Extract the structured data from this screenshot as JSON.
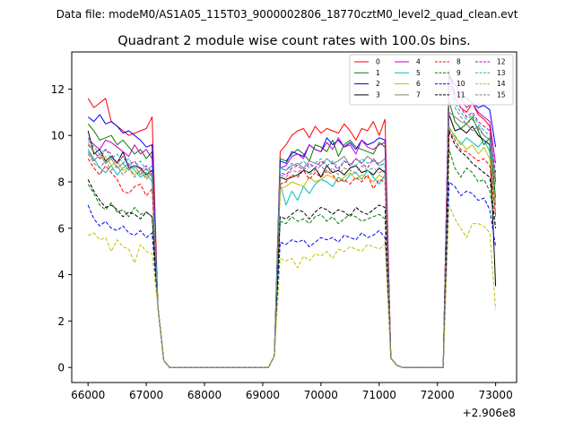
{
  "figure": {
    "suptitle": "Data file: modeM0/AS1A05_115T03_9000002806_18770cztM0_level2_quad_clean.evt",
    "title": "Quadrant 2 module wise count rates with 100.0s bins."
  },
  "chart_data": {
    "type": "line",
    "title": "Quadrant 2 module wise count rates with 100.0s bins.",
    "xlabel": "",
    "ylabel": "",
    "x_offset_label": "+2.906e8",
    "xlim": [
      65720,
      73360
    ],
    "ylim": [
      -0.65,
      13.6
    ],
    "xticks": [
      66000,
      67000,
      68000,
      69000,
      70000,
      71000,
      72000,
      73000
    ],
    "xtick_labels": [
      "66000",
      "67000",
      "68000",
      "69000",
      "70000",
      "71000",
      "72000",
      "73000"
    ],
    "yticks": [
      0,
      2,
      4,
      6,
      8,
      10,
      12
    ],
    "ytick_labels": [
      "0",
      "2",
      "4",
      "6",
      "8",
      "10",
      "12"
    ],
    "legend_location": "top-right",
    "legend_columns": 4,
    "x_segments_note": "x values are 100 s bins: 66000-67100 (12 pts), 67200 & 67300 drop, 67300-69100 zero, 69200-71100 (20 pts), 71200 & 71300 drop, 71300-72100 zero, 72200-73000 (9 pts)",
    "series": [
      {
        "name": "0",
        "color": "#ff0000",
        "dash": "solid",
        "seg1": [
          11.6,
          11.2,
          11.4,
          11.6,
          10.6,
          10.4,
          10.2,
          10.0,
          10.1,
          10.2,
          10.3,
          10.8
        ],
        "seg2": [
          8.7,
          9.3,
          9.6,
          10.0,
          10.2,
          10.3,
          9.9,
          10.4,
          10.1,
          10.3,
          10.2,
          10.1,
          10.5,
          10.2,
          9.8,
          10.3,
          10.2,
          10.6,
          10.0,
          10.7
        ],
        "seg3": [
          12.8,
          11.6,
          11.2,
          11.0,
          11.4,
          10.9,
          10.7,
          10.4,
          8.0
        ]
      },
      {
        "name": "1",
        "color": "#008000",
        "dash": "solid",
        "seg1": [
          10.5,
          10.2,
          9.8,
          9.9,
          10.0,
          9.6,
          9.8,
          9.5,
          9.2,
          9.4,
          9.0,
          9.3
        ],
        "seg2": [
          8.5,
          9.0,
          8.9,
          9.2,
          9.4,
          9.2,
          8.9,
          9.6,
          9.5,
          9.3,
          9.8,
          9.1,
          9.6,
          9.8,
          9.5,
          9.4,
          9.3,
          9.2,
          9.7,
          9.5
        ],
        "seg3": [
          11.5,
          10.6,
          10.3,
          10.5,
          10.8,
          10.2,
          9.6,
          9.9,
          7.3
        ]
      },
      {
        "name": "2",
        "color": "#0000ff",
        "dash": "solid",
        "seg1": [
          10.8,
          10.6,
          10.9,
          10.5,
          10.6,
          10.4,
          10.1,
          10.2,
          10.0,
          9.8,
          9.5,
          9.6
        ],
        "seg2": [
          8.6,
          8.9,
          8.8,
          9.3,
          9.2,
          9.1,
          9.6,
          9.4,
          9.3,
          9.9,
          9.6,
          9.8,
          9.5,
          9.7,
          9.4,
          9.8,
          9.6,
          9.7,
          9.9,
          9.8
        ],
        "seg3": [
          12.6,
          12.2,
          11.8,
          11.6,
          11.4,
          11.2,
          11.3,
          11.1,
          9.5
        ]
      },
      {
        "name": "3",
        "color": "#000000",
        "dash": "solid",
        "seg1": [
          10.2,
          9.2,
          9.4,
          8.9,
          9.1,
          8.8,
          9.3,
          8.6,
          8.7,
          8.6,
          8.3,
          8.5
        ],
        "seg2": [
          7.8,
          8.2,
          8.1,
          8.2,
          8.3,
          8.5,
          8.4,
          8.6,
          8.2,
          8.7,
          8.4,
          8.5,
          8.3,
          8.6,
          8.7,
          8.4,
          8.5,
          8.3,
          8.6,
          8.4
        ],
        "seg3": [
          10.9,
          10.2,
          10.3,
          10.1,
          10.4,
          10.0,
          9.8,
          9.6,
          3.5
        ]
      },
      {
        "name": "4",
        "color": "#bf00bf",
        "dash": "solid",
        "seg1": [
          9.9,
          9.6,
          9.4,
          9.8,
          9.7,
          9.5,
          9.3,
          9.1,
          9.6,
          9.2,
          9.4,
          9.0
        ],
        "seg2": [
          8.3,
          8.6,
          8.7,
          9.1,
          9.2,
          9.0,
          9.6,
          9.4,
          9.3,
          9.7,
          9.4,
          9.9,
          9.5,
          9.6,
          9.2,
          9.8,
          9.5,
          9.4,
          9.6,
          9.7
        ],
        "seg3": [
          12.7,
          11.8,
          11.6,
          11.2,
          11.4,
          11.0,
          10.8,
          10.6,
          8.8
        ]
      },
      {
        "name": "5",
        "color": "#00bfbf",
        "dash": "solid",
        "seg1": [
          9.4,
          9.0,
          8.6,
          8.4,
          8.7,
          8.3,
          8.6,
          8.8,
          8.5,
          8.2,
          8.4,
          8.0
        ],
        "seg2": [
          7.6,
          7.9,
          7.0,
          7.6,
          7.2,
          7.8,
          7.5,
          7.9,
          8.1,
          8.0,
          7.8,
          8.2,
          8.0,
          8.3,
          8.4,
          8.1,
          8.5,
          8.2,
          7.9,
          8.3
        ],
        "seg3": [
          10.3,
          10.0,
          9.6,
          9.9,
          9.7,
          9.5,
          9.8,
          9.3,
          7.0
        ]
      },
      {
        "name": "6",
        "color": "#bfbf00",
        "dash": "solid",
        "seg1": [
          9.7,
          9.3,
          9.0,
          9.1,
          8.7,
          8.9,
          8.5,
          8.6,
          8.3,
          8.5,
          8.2,
          8.4
        ],
        "seg2": [
          7.4,
          7.7,
          7.8,
          8.0,
          7.9,
          7.8,
          8.2,
          8.0,
          8.1,
          8.3,
          8.2,
          8.0,
          8.2,
          8.4,
          8.1,
          8.3,
          8.2,
          8.0,
          8.3,
          8.1
        ],
        "seg3": [
          10.4,
          9.9,
          9.7,
          9.4,
          9.6,
          9.2,
          9.5,
          9.0,
          7.1
        ]
      },
      {
        "name": "7",
        "color": "#808080",
        "dash": "solid",
        "seg1": [
          9.3,
          8.9,
          9.2,
          8.8,
          9.0,
          8.6,
          8.8,
          8.5,
          8.7,
          8.3,
          8.6,
          8.2
        ],
        "seg2": [
          8.4,
          8.6,
          8.5,
          8.7,
          8.8,
          8.6,
          8.9,
          8.8,
          8.7,
          9.0,
          8.8,
          8.9,
          9.1,
          8.7,
          9.0,
          8.8,
          9.1,
          8.9,
          8.8,
          9.0
        ],
        "seg3": [
          11.0,
          10.8,
          10.6,
          10.5,
          10.2,
          10.4,
          10.0,
          9.8,
          6.5
        ]
      },
      {
        "name": "8",
        "color": "#ff0000",
        "dash": "dashed",
        "seg1": [
          9.0,
          8.6,
          8.3,
          8.7,
          8.4,
          8.1,
          7.6,
          7.5,
          7.8,
          7.9,
          7.4,
          7.7
        ],
        "seg2": [
          7.6,
          7.9,
          8.0,
          8.3,
          8.2,
          8.5,
          8.1,
          8.4,
          8.2,
          8.5,
          8.3,
          8.0,
          8.1,
          7.9,
          8.2,
          8.0,
          8.3,
          7.7,
          8.1,
          8.0
        ],
        "seg3": [
          10.2,
          9.8,
          9.4,
          9.3,
          9.1,
          8.9,
          9.0,
          8.7,
          6.6
        ]
      },
      {
        "name": "9",
        "color": "#008000",
        "dash": "dashed",
        "seg1": [
          7.9,
          7.5,
          7.0,
          6.8,
          7.1,
          6.7,
          6.8,
          6.5,
          6.9,
          6.6,
          6.7,
          6.5
        ],
        "seg2": [
          6.0,
          6.3,
          6.2,
          6.5,
          6.3,
          6.4,
          6.2,
          6.5,
          6.6,
          6.3,
          6.5,
          6.2,
          6.4,
          6.6,
          6.5,
          6.3,
          6.4,
          6.5,
          6.6,
          6.4
        ],
        "seg3": [
          9.4,
          8.6,
          8.2,
          8.6,
          8.4,
          8.0,
          8.1,
          7.6,
          6.0
        ]
      },
      {
        "name": "10",
        "color": "#0000ff",
        "dash": "dashed",
        "seg1": [
          7.0,
          6.4,
          6.1,
          6.3,
          6.0,
          5.9,
          6.1,
          5.8,
          5.7,
          5.9,
          5.6,
          5.8
        ],
        "seg2": [
          5.1,
          5.4,
          5.3,
          5.5,
          5.4,
          5.5,
          5.2,
          5.4,
          5.6,
          5.5,
          5.6,
          5.4,
          5.7,
          5.6,
          5.5,
          5.8,
          5.6,
          5.7,
          5.9,
          5.6
        ],
        "seg3": [
          8.0,
          7.8,
          7.4,
          7.6,
          7.5,
          7.2,
          7.3,
          6.8,
          5.2
        ]
      },
      {
        "name": "11",
        "color": "#000000",
        "dash": "dashed",
        "seg1": [
          8.1,
          7.6,
          7.2,
          6.9,
          7.0,
          6.8,
          6.5,
          6.7,
          6.6,
          6.4,
          6.7,
          6.5
        ],
        "seg2": [
          6.2,
          6.5,
          6.4,
          6.6,
          6.8,
          6.7,
          6.4,
          6.7,
          6.9,
          6.8,
          6.6,
          6.8,
          6.7,
          6.5,
          6.9,
          6.7,
          6.6,
          6.8,
          7.0,
          6.9
        ],
        "seg3": [
          10.2,
          9.6,
          9.3,
          9.1,
          8.8,
          8.6,
          8.4,
          8.2,
          6.0
        ]
      },
      {
        "name": "12",
        "color": "#bf00bf",
        "dash": "dashed",
        "seg1": [
          9.6,
          9.3,
          9.0,
          9.4,
          9.2,
          8.8,
          9.1,
          8.7,
          8.9,
          8.5,
          8.7,
          8.4
        ],
        "seg2": [
          8.1,
          8.4,
          8.3,
          8.6,
          8.7,
          8.5,
          8.8,
          8.6,
          8.9,
          8.7,
          8.8,
          8.5,
          8.9,
          8.7,
          9.0,
          8.8,
          8.6,
          9.0,
          8.7,
          8.8
        ],
        "seg3": [
          12.6,
          11.6,
          11.2,
          10.8,
          11.0,
          10.6,
          10.4,
          10.2,
          8.4
        ]
      },
      {
        "name": "13",
        "color": "#00bfbf",
        "dash": "dashed",
        "seg1": [
          9.8,
          9.5,
          9.2,
          9.4,
          9.0,
          9.2,
          8.8,
          9.0,
          8.6,
          8.9,
          8.5,
          8.7
        ],
        "seg2": [
          8.3,
          8.6,
          8.5,
          8.8,
          8.7,
          8.9,
          8.6,
          8.8,
          9.0,
          8.7,
          8.9,
          8.6,
          8.9,
          8.8,
          8.7,
          9.0,
          8.8,
          8.9,
          8.7,
          8.8
        ],
        "seg3": [
          12.3,
          11.4,
          11.0,
          10.7,
          10.9,
          10.5,
          10.2,
          10.0,
          8.2
        ]
      },
      {
        "name": "14",
        "color": "#bfbf00",
        "dash": "dashed",
        "seg1": [
          5.7,
          5.8,
          5.5,
          5.6,
          5.0,
          5.5,
          5.2,
          5.1,
          4.5,
          5.3,
          5.0,
          4.9
        ],
        "seg2": [
          4.5,
          4.7,
          4.6,
          4.7,
          4.3,
          4.8,
          4.6,
          4.9,
          4.8,
          5.0,
          4.7,
          5.1,
          5.0,
          5.2,
          5.1,
          5.0,
          5.3,
          5.2,
          5.1,
          5.3
        ],
        "seg3": [
          7.0,
          6.4,
          6.0,
          5.6,
          6.2,
          6.2,
          6.1,
          5.8,
          2.5
        ]
      },
      {
        "name": "15",
        "color": "#808080",
        "dash": "dashed",
        "seg1": [
          9.2,
          8.8,
          8.6,
          8.9,
          8.5,
          8.7,
          8.3,
          8.6,
          8.2,
          8.5,
          8.1,
          8.4
        ],
        "seg2": [
          8.0,
          8.3,
          8.2,
          8.5,
          8.4,
          8.6,
          8.3,
          8.5,
          8.7,
          8.4,
          8.6,
          8.3,
          8.6,
          8.5,
          8.4,
          8.7,
          8.5,
          8.6,
          8.4,
          8.5
        ],
        "seg3": [
          12.0,
          11.2,
          10.8,
          10.5,
          10.7,
          10.3,
          10.0,
          9.8,
          7.8
        ]
      }
    ]
  }
}
